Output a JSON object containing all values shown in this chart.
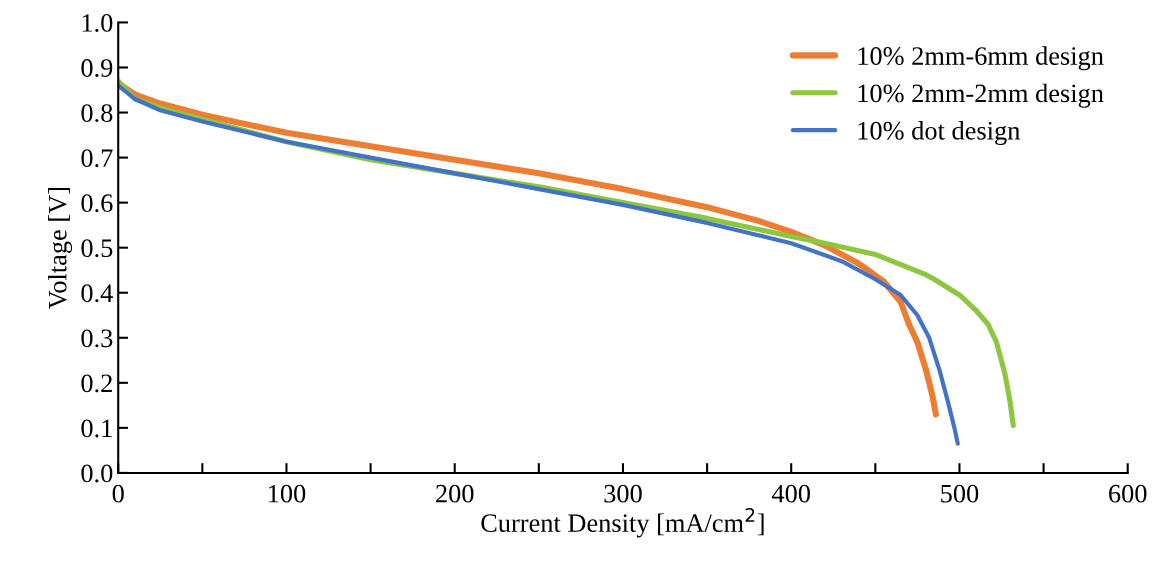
{
  "chart_data": {
    "type": "line",
    "xlabel": "Current Density [mA/cm$^{2}$]",
    "ylabel": "Voltage [V]",
    "xlim": [
      0,
      600
    ],
    "ylim": [
      0,
      1.0
    ],
    "xticks": [
      0,
      {
        "value": 50,
        "label": null
      },
      100,
      {
        "value": 150,
        "label": null
      },
      200,
      {
        "value": 250,
        "label": null
      },
      300,
      {
        "value": 350,
        "label": null
      },
      400,
      {
        "value": 450,
        "label": null
      },
      500,
      {
        "value": 550,
        "label": null
      },
      600
    ],
    "yticks": [
      {
        "value": 0,
        "label": "0.0"
      },
      0.1,
      0.2,
      0.3,
      0.4,
      0.5,
      0.6,
      0.7,
      0.8,
      0.9,
      {
        "value": 1.0,
        "label": "1.0"
      }
    ],
    "grid": false,
    "legend": "top right",
    "marker": "none",
    "line_style": "solid",
    "series": [
      {
        "name": "10% 2mm-6mm design",
        "color": "#ed7d31",
        "x": [
          0,
          10,
          25,
          50,
          100,
          150,
          200,
          250,
          300,
          350,
          380,
          400,
          420,
          440,
          455,
          465,
          470,
          475,
          480,
          484,
          486
        ],
        "values": [
          0.865,
          0.84,
          0.82,
          0.795,
          0.755,
          0.725,
          0.695,
          0.665,
          0.63,
          0.59,
          0.56,
          0.535,
          0.505,
          0.465,
          0.425,
          0.38,
          0.33,
          0.29,
          0.23,
          0.17,
          0.13
        ]
      },
      {
        "name": "10% 2mm-2mm design",
        "color": "#8dc63f",
        "x": [
          0,
          10,
          25,
          50,
          100,
          150,
          200,
          250,
          300,
          350,
          400,
          420,
          450,
          470,
          480,
          485,
          500,
          510,
          517,
          522,
          527,
          530,
          532
        ],
        "values": [
          0.87,
          0.83,
          0.81,
          0.785,
          0.735,
          0.695,
          0.665,
          0.635,
          0.6,
          0.565,
          0.525,
          0.51,
          0.485,
          0.455,
          0.44,
          0.43,
          0.395,
          0.36,
          0.33,
          0.29,
          0.22,
          0.16,
          0.105
        ]
      },
      {
        "name": "10% dot design",
        "color": "#4472c4",
        "x": [
          0,
          10,
          25,
          50,
          100,
          150,
          200,
          250,
          300,
          350,
          400,
          430,
          450,
          465,
          475,
          482,
          488,
          493,
          497,
          499
        ],
        "values": [
          0.86,
          0.83,
          0.805,
          0.78,
          0.735,
          0.7,
          0.665,
          0.63,
          0.595,
          0.555,
          0.51,
          0.47,
          0.43,
          0.395,
          0.35,
          0.3,
          0.23,
          0.16,
          0.1,
          0.065
        ]
      }
    ]
  }
}
